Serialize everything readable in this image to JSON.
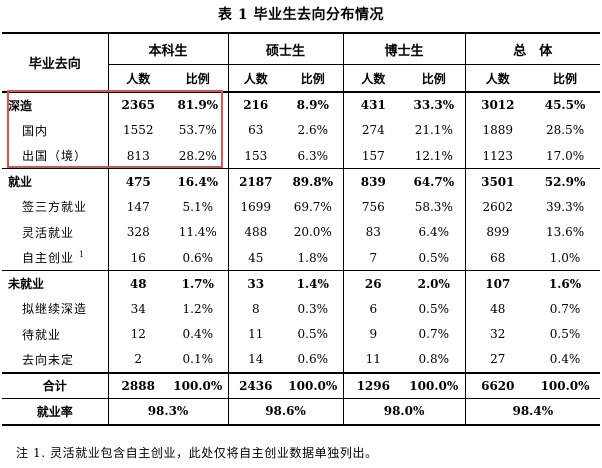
{
  "title": "表 1 毕业生去向分布情况",
  "headers": {
    "row_header": "毕业去向",
    "groups": [
      "本科生",
      "硕士生",
      "博士生",
      "总　体"
    ],
    "sub_count": "人数",
    "sub_ratio": "比例"
  },
  "rows": [
    {
      "label": "深造",
      "level": "main",
      "values": [
        "2365",
        "81.9%",
        "216",
        "8.9%",
        "431",
        "33.3%",
        "3012",
        "45.5%"
      ]
    },
    {
      "label": "国内",
      "level": "sub",
      "values": [
        "1552",
        "53.7%",
        "63",
        "2.6%",
        "274",
        "21.1%",
        "1889",
        "28.5%"
      ]
    },
    {
      "label": "出国（境）",
      "level": "sub",
      "values": [
        "813",
        "28.2%",
        "153",
        "6.3%",
        "157",
        "12.1%",
        "1123",
        "17.0%"
      ]
    },
    {
      "label": "就业",
      "level": "main",
      "values": [
        "475",
        "16.4%",
        "2187",
        "89.8%",
        "839",
        "64.7%",
        "3501",
        "52.9%"
      ]
    },
    {
      "label": "签三方就业",
      "level": "sub",
      "values": [
        "147",
        "5.1%",
        "1699",
        "69.7%",
        "756",
        "58.3%",
        "2602",
        "39.3%"
      ]
    },
    {
      "label": "灵活就业",
      "level": "sub",
      "values": [
        "328",
        "11.4%",
        "488",
        "20.0%",
        "83",
        "6.4%",
        "899",
        "13.6%"
      ]
    },
    {
      "label": "自主创业",
      "sup": "1",
      "level": "sub",
      "values": [
        "16",
        "0.6%",
        "45",
        "1.8%",
        "7",
        "0.5%",
        "68",
        "1.0%"
      ]
    },
    {
      "label": "未就业",
      "level": "main",
      "values": [
        "48",
        "1.7%",
        "33",
        "1.4%",
        "26",
        "2.0%",
        "107",
        "1.6%"
      ]
    },
    {
      "label": "拟继续深造",
      "level": "sub",
      "values": [
        "34",
        "1.2%",
        "8",
        "0.3%",
        "6",
        "0.5%",
        "48",
        "0.7%"
      ]
    },
    {
      "label": "待就业",
      "level": "sub",
      "values": [
        "12",
        "0.4%",
        "11",
        "0.5%",
        "9",
        "0.7%",
        "32",
        "0.5%"
      ]
    },
    {
      "label": "去向未定",
      "level": "sub",
      "values": [
        "2",
        "0.1%",
        "14",
        "0.6%",
        "11",
        "0.8%",
        "27",
        "0.4%"
      ]
    }
  ],
  "total": {
    "label": "合计",
    "values": [
      "2888",
      "100.0%",
      "2436",
      "100.0%",
      "1296",
      "100.0%",
      "6620",
      "100.0%"
    ]
  },
  "employment_rate": {
    "label": "就业率",
    "values": [
      "98.3%",
      "98.6%",
      "98.0%",
      "98.4%"
    ]
  },
  "note": "注 1. 灵活就业包含自主创业，此处仅将自主创业数据单独列出。",
  "colors": {
    "highlight_border": "#d9534f"
  }
}
